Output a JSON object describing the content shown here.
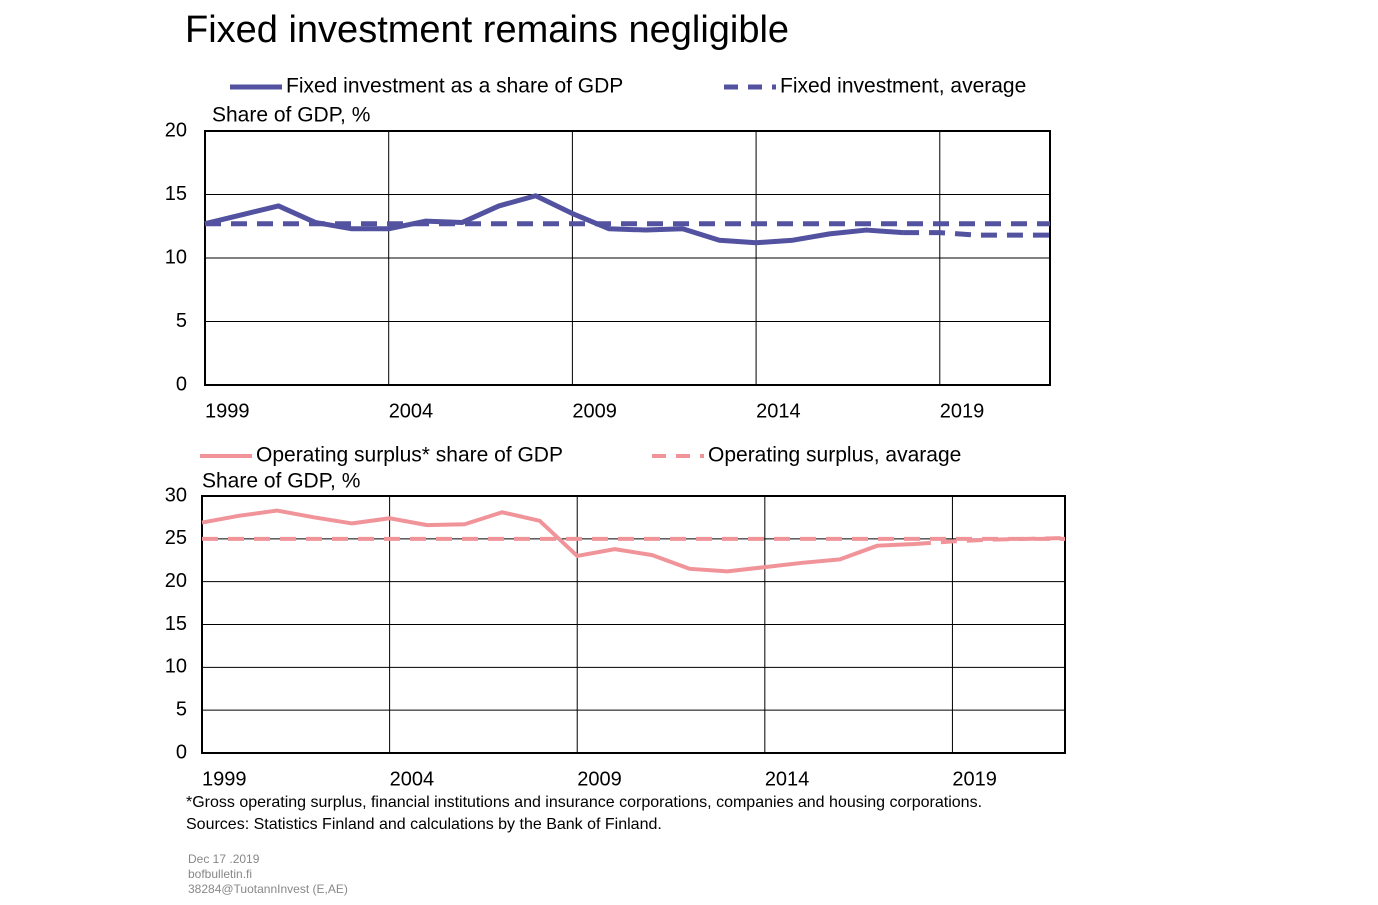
{
  "title": "Fixed investment remains negligible",
  "chart_data": [
    {
      "type": "line",
      "y_label": "Share of GDP, %",
      "x": [
        1999,
        2000,
        2001,
        2002,
        2003,
        2004,
        2005,
        2006,
        2007,
        2008,
        2009,
        2010,
        2011,
        2012,
        2013,
        2014,
        2015,
        2016,
        2017,
        2018,
        2019,
        2020,
        2021,
        2022
      ],
      "series": [
        {
          "name": "Fixed investment as a share of GDP",
          "color": "#5252a0",
          "style": "solid",
          "values": [
            12.7,
            13.4,
            14.1,
            12.8,
            12.3,
            12.3,
            12.9,
            12.8,
            14.1,
            14.9,
            13.5,
            12.3,
            12.2,
            12.3,
            11.4,
            11.2,
            11.4,
            11.9,
            12.2,
            12.0,
            null,
            null,
            null,
            null
          ]
        },
        {
          "name": "Fixed investment, average",
          "color": "#5252a0",
          "style": "dashed",
          "values": [
            12.7,
            12.7,
            12.7,
            12.7,
            12.7,
            12.7,
            12.7,
            12.7,
            12.7,
            12.7,
            12.7,
            12.7,
            12.7,
            12.7,
            12.7,
            12.7,
            12.7,
            12.7,
            12.7,
            12.7,
            12.7,
            12.7,
            12.7,
            12.7
          ]
        },
        {
          "color": "#5252a0",
          "style": "dashed",
          "values": [
            null,
            null,
            null,
            null,
            null,
            null,
            null,
            null,
            null,
            null,
            null,
            null,
            null,
            null,
            null,
            null,
            null,
            null,
            null,
            12.0,
            12.0,
            11.8,
            11.8,
            11.8
          ]
        }
      ],
      "xlim": [
        1999,
        2022
      ],
      "xticks": [
        1999,
        2004,
        2009,
        2014,
        2019
      ],
      "ylim": [
        0,
        20
      ],
      "yticks": [
        0,
        5,
        10,
        15,
        20
      ],
      "grid": true
    },
    {
      "type": "line",
      "y_label": "Share of GDP, %",
      "x": [
        1999,
        2000,
        2001,
        2002,
        2003,
        2004,
        2005,
        2006,
        2007,
        2008,
        2009,
        2010,
        2011,
        2012,
        2013,
        2014,
        2015,
        2016,
        2017,
        2018,
        2019,
        2020,
        2021,
        2022
      ],
      "series": [
        {
          "name": "Operating surplus* share of GDP",
          "color": "#f0949a",
          "style": "solid",
          "values": [
            26.9,
            27.7,
            28.3,
            27.5,
            26.8,
            27.4,
            26.6,
            26.7,
            28.1,
            27.1,
            23.0,
            23.8,
            23.1,
            21.5,
            21.2,
            21.7,
            22.2,
            22.6,
            24.2,
            24.4,
            null,
            null,
            null,
            null
          ]
        },
        {
          "name": "Operating surplus, avarage",
          "color": "#f0949a",
          "style": "dashed",
          "values": [
            25,
            25,
            25,
            25,
            25,
            25,
            25,
            25,
            25,
            25,
            25,
            25,
            25,
            25,
            25,
            25,
            25,
            25,
            25,
            25,
            25,
            25,
            25,
            25
          ]
        },
        {
          "color": "#f0949a",
          "style": "dashed",
          "values": [
            null,
            null,
            null,
            null,
            null,
            null,
            null,
            null,
            null,
            null,
            null,
            null,
            null,
            null,
            null,
            null,
            null,
            null,
            null,
            24.4,
            24.7,
            24.9,
            25.0,
            25.1
          ]
        }
      ],
      "xlim": [
        1999,
        2022
      ],
      "xticks": [
        1999,
        2004,
        2009,
        2014,
        2019
      ],
      "ylim": [
        0,
        30
      ],
      "yticks": [
        0,
        5,
        10,
        15,
        20,
        25,
        30
      ],
      "grid": true
    }
  ],
  "notes": [
    "*Gross operating surplus, financial institutions and insurance corporations, companies and housing corporations.",
    "Sources: Statistics Finland and calculations by the Bank of Finland."
  ],
  "meta": [
    "Dec 17 .2019",
    "bofbulletin.fi",
    "38284@TuotannInvest  (E,AE)"
  ]
}
